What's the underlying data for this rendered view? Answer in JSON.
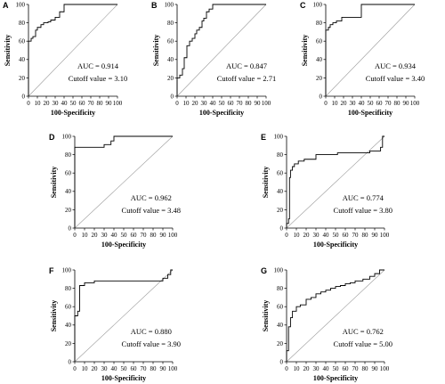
{
  "chart_data": [
    {
      "panel": "A",
      "type": "line",
      "xlabel": "100-Specificity",
      "ylabel": "Sensitivity",
      "xlim": [
        0,
        100
      ],
      "ylim": [
        0,
        100
      ],
      "xticks": [
        "0",
        "10",
        "20",
        "30",
        "40",
        "50",
        "60",
        "70",
        "80",
        "90",
        "100"
      ],
      "yticks": [
        "0",
        "20",
        "40",
        "60",
        "80",
        "100"
      ],
      "reference_line": true,
      "annotations": [
        "AUC = 0.914",
        "Cutoff value = 3.10"
      ],
      "series": [
        {
          "x": [
            0,
            0,
            3,
            3,
            5,
            5,
            8,
            8,
            10,
            10,
            14,
            14,
            17,
            17,
            22,
            22,
            25,
            25,
            30,
            30,
            35,
            35,
            40,
            40,
            100
          ],
          "y": [
            0,
            60,
            60,
            63,
            63,
            65,
            65,
            72,
            72,
            75,
            75,
            78,
            78,
            80,
            80,
            81,
            81,
            83,
            83,
            86,
            86,
            92,
            92,
            100,
            100
          ]
        }
      ]
    },
    {
      "panel": "B",
      "type": "line",
      "xlabel": "100-Specificity",
      "ylabel": "Sensitivity",
      "xlim": [
        0,
        100
      ],
      "ylim": [
        0,
        100
      ],
      "xticks": [
        "0",
        "10",
        "20",
        "30",
        "40",
        "50",
        "60",
        "70",
        "80",
        "90",
        "100"
      ],
      "yticks": [
        "0",
        "20",
        "40",
        "60",
        "80",
        "100"
      ],
      "reference_line": true,
      "annotations": [
        "AUC = 0.847",
        "Cutoff value = 2.71"
      ],
      "series": [
        {
          "x": [
            0,
            0,
            3,
            3,
            6,
            6,
            8,
            8,
            11,
            11,
            14,
            14,
            17,
            17,
            20,
            20,
            22,
            22,
            25,
            25,
            28,
            28,
            30,
            30,
            33,
            33,
            36,
            36,
            40,
            40,
            100
          ],
          "y": [
            0,
            20,
            20,
            23,
            23,
            30,
            30,
            42,
            42,
            55,
            55,
            60,
            60,
            63,
            63,
            68,
            68,
            72,
            72,
            75,
            75,
            82,
            82,
            85,
            85,
            92,
            92,
            95,
            95,
            100,
            100
          ]
        }
      ]
    },
    {
      "panel": "C",
      "type": "line",
      "xlabel": "100-Specificity",
      "ylabel": "Sensitivity",
      "xlim": [
        0,
        100
      ],
      "ylim": [
        0,
        100
      ],
      "xticks": [
        "0",
        "10",
        "20",
        "30",
        "40",
        "50",
        "60",
        "70",
        "80",
        "90",
        "100"
      ],
      "yticks": [
        "0",
        "20",
        "40",
        "60",
        "80",
        "100"
      ],
      "reference_line": true,
      "annotations": [
        "AUC = 0.934",
        "Cutoff value = 3.40"
      ],
      "series": [
        {
          "x": [
            0,
            0,
            3,
            3,
            5,
            5,
            8,
            8,
            12,
            12,
            18,
            18,
            40,
            40,
            100
          ],
          "y": [
            0,
            72,
            72,
            75,
            75,
            78,
            78,
            80,
            80,
            82,
            82,
            86,
            86,
            100,
            100
          ]
        }
      ]
    },
    {
      "panel": "D",
      "type": "line",
      "xlabel": "100-Specificity",
      "ylabel": "Sensitivity",
      "xlim": [
        0,
        100
      ],
      "ylim": [
        0,
        100
      ],
      "xticks": [
        "0",
        "10",
        "20",
        "30",
        "40",
        "50",
        "60",
        "70",
        "80",
        "90",
        "100"
      ],
      "yticks": [
        "0",
        "20",
        "40",
        "60",
        "80",
        "100"
      ],
      "reference_line": true,
      "annotations": [
        "AUC = 0.962",
        "Cutoff value = 3.48"
      ],
      "series": [
        {
          "x": [
            0,
            0,
            30,
            30,
            37,
            37,
            40,
            40,
            100
          ],
          "y": [
            0,
            88,
            88,
            91,
            91,
            95,
            95,
            100,
            100
          ]
        }
      ]
    },
    {
      "panel": "E",
      "type": "line",
      "xlabel": "100-Specificity",
      "ylabel": "Sensitivity",
      "xlim": [
        0,
        100
      ],
      "ylim": [
        0,
        100
      ],
      "xticks": [
        "0",
        "10",
        "20",
        "30",
        "40",
        "50",
        "60",
        "70",
        "80",
        "90",
        "100"
      ],
      "yticks": [
        "0",
        "20",
        "40",
        "60",
        "80",
        "100"
      ],
      "reference_line": true,
      "annotations": [
        "AUC = 0.774",
        "Cutoff value = 3.80"
      ],
      "series": [
        {
          "x": [
            0,
            0,
            2,
            2,
            3,
            3,
            4,
            4,
            6,
            6,
            8,
            8,
            12,
            12,
            18,
            18,
            30,
            30,
            52,
            52,
            85,
            85,
            96,
            96,
            98,
            98,
            100
          ],
          "y": [
            0,
            5,
            5,
            10,
            10,
            55,
            55,
            63,
            63,
            67,
            67,
            70,
            70,
            73,
            73,
            75,
            75,
            80,
            80,
            82,
            82,
            84,
            84,
            88,
            88,
            100,
            100
          ]
        }
      ]
    },
    {
      "panel": "F",
      "type": "line",
      "xlabel": "100-Specificity",
      "ylabel": "Sensitivity",
      "xlim": [
        0,
        100
      ],
      "ylim": [
        0,
        100
      ],
      "xticks": [
        "0",
        "10",
        "20",
        "30",
        "40",
        "50",
        "60",
        "70",
        "80",
        "90",
        "100"
      ],
      "yticks": [
        "0",
        "20",
        "40",
        "60",
        "80",
        "100"
      ],
      "reference_line": true,
      "annotations": [
        "AUC = 0.880",
        "Cutoff value = 3.90"
      ],
      "series": [
        {
          "x": [
            0,
            0,
            3,
            3,
            5,
            5,
            10,
            10,
            20,
            20,
            90,
            90,
            95,
            95,
            98,
            98,
            100
          ],
          "y": [
            0,
            50,
            50,
            55,
            55,
            83,
            83,
            86,
            86,
            88,
            88,
            91,
            91,
            95,
            95,
            100,
            100
          ]
        }
      ]
    },
    {
      "panel": "G",
      "type": "line",
      "xlabel": "100-Specificity",
      "ylabel": "Sensitivity",
      "xlim": [
        0,
        100
      ],
      "ylim": [
        0,
        100
      ],
      "xticks": [
        "0",
        "10",
        "20",
        "30",
        "40",
        "50",
        "60",
        "70",
        "80",
        "90",
        "100"
      ],
      "yticks": [
        "0",
        "20",
        "40",
        "60",
        "80",
        "100"
      ],
      "reference_line": true,
      "annotations": [
        "AUC = 0.762",
        "Cutoff value = 5.00"
      ],
      "series": [
        {
          "x": [
            0,
            0,
            2,
            2,
            4,
            4,
            6,
            6,
            10,
            10,
            14,
            14,
            20,
            20,
            25,
            25,
            30,
            30,
            35,
            35,
            40,
            40,
            45,
            45,
            50,
            50,
            55,
            55,
            60,
            60,
            65,
            65,
            70,
            70,
            78,
            78,
            85,
            85,
            90,
            90,
            95,
            95,
            100
          ],
          "y": [
            0,
            12,
            12,
            38,
            38,
            48,
            48,
            55,
            55,
            60,
            60,
            62,
            62,
            68,
            68,
            70,
            70,
            74,
            74,
            76,
            76,
            78,
            78,
            80,
            80,
            82,
            82,
            83,
            83,
            85,
            85,
            86,
            86,
            88,
            88,
            90,
            90,
            93,
            93,
            96,
            96,
            100,
            100
          ]
        }
      ]
    }
  ]
}
